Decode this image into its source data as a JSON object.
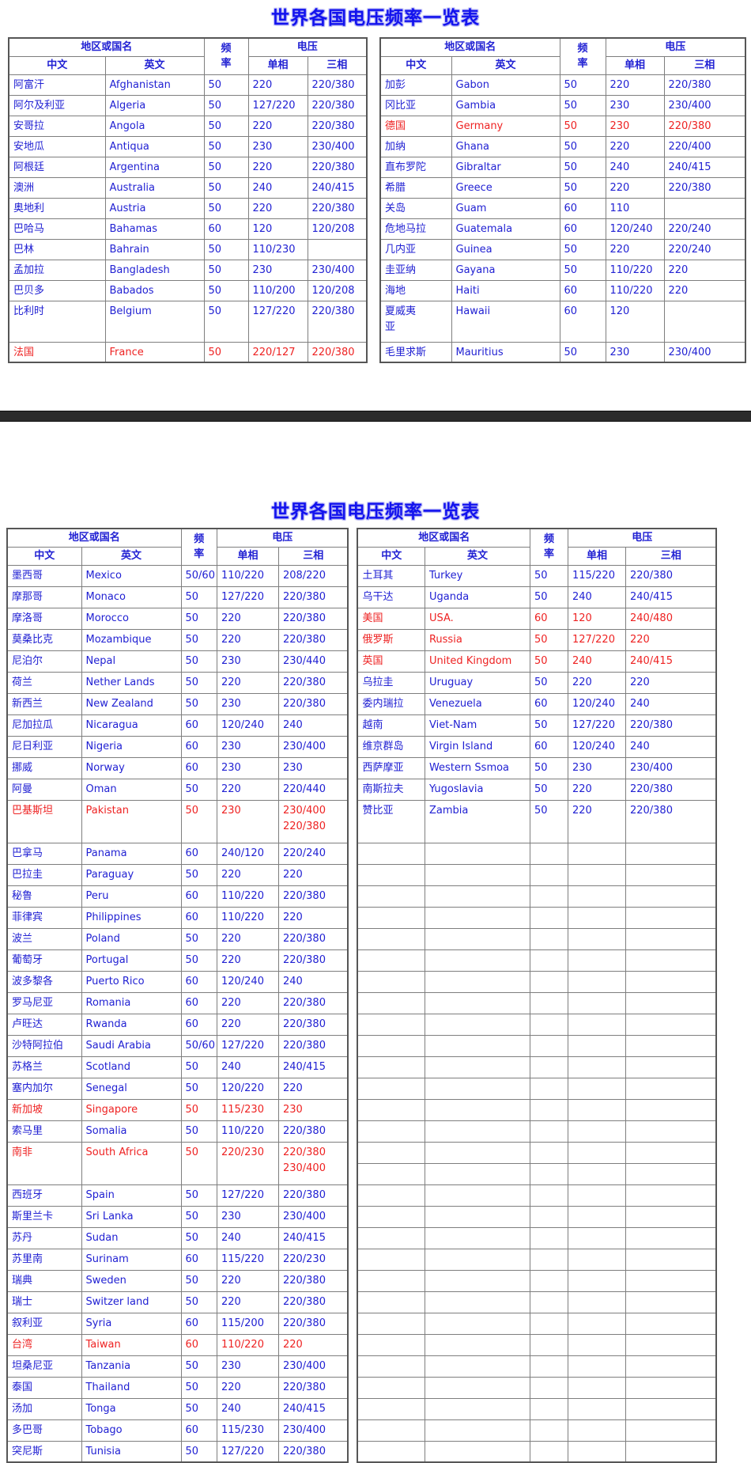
{
  "page": {
    "title": "世界各国电压频率一览表",
    "header": {
      "region": "地区或国名",
      "chinese": "中文",
      "english": "英文",
      "frequency": [
        "频",
        "率"
      ],
      "voltage": "电压",
      "single_phase": "单相",
      "three_phase": "三相"
    },
    "colors": {
      "title_blue": "#1212ee",
      "text_blue": "#2121d3",
      "highlight_red": "#ee2222",
      "table_border": "#7e7e7e",
      "divider_bar": "#2b2b2b"
    },
    "sections": [
      {
        "tables": [
          {
            "rows": [
              {
                "cn": "阿富汗",
                "en": "Afghanistan",
                "freq": "50",
                "single": "220",
                "three": "220/380"
              },
              {
                "cn": "阿尔及利亚",
                "en": "Algeria",
                "freq": "50",
                "single": "127/220",
                "three": "220/380"
              },
              {
                "cn": "安哥拉",
                "en": "Angola",
                "freq": "50",
                "single": "220",
                "three": "220/380"
              },
              {
                "cn": "安地瓜",
                "en": "Antiqua",
                "freq": "50",
                "single": "230",
                "three": "230/400"
              },
              {
                "cn": "阿根廷",
                "en": "Argentina",
                "freq": "50",
                "single": "220",
                "three": "220/380"
              },
              {
                "cn": "澳洲",
                "en": "Australia",
                "freq": "50",
                "single": "240",
                "three": "240/415"
              },
              {
                "cn": "奥地利",
                "en": "Austria",
                "freq": "50",
                "single": "220",
                "three": "220/380"
              },
              {
                "cn": "巴哈马",
                "en": "Bahamas",
                "freq": "60",
                "single": "120",
                "three": "120/208"
              },
              {
                "cn": "巴林",
                "en": "Bahrain",
                "freq": "50",
                "single": "110/230",
                "three": ""
              },
              {
                "cn": "孟加拉",
                "en": "Bangladesh",
                "freq": "50",
                "single": "230",
                "three": "230/400"
              },
              {
                "cn": "巴贝多",
                "en": "Babados",
                "freq": "50",
                "single": "110/200",
                "three": "120/208"
              },
              {
                "cn": "比利时",
                "en": "Belgium",
                "freq": "50",
                "single": "127/220",
                "three": "220/380",
                "tall": true
              },
              {
                "cn": "法国",
                "en": "France",
                "freq": "50",
                "single": "220/127",
                "three": "220/380",
                "red": true
              }
            ],
            "empty_rows": 0
          },
          {
            "rows": [
              {
                "cn": "加彭",
                "en": "Gabon",
                "freq": "50",
                "single": "220",
                "three": "220/380"
              },
              {
                "cn": "冈比亚",
                "en": "Gambia",
                "freq": "50",
                "single": "230",
                "three": "230/400"
              },
              {
                "cn": "德国",
                "en": "Germany",
                "freq": "50",
                "single": "230",
                "three": "220/380",
                "red": true
              },
              {
                "cn": "加纳",
                "en": "Ghana",
                "freq": "50",
                "single": "220",
                "three": "220/400"
              },
              {
                "cn": "直布罗陀",
                "en": "Gibraltar",
                "freq": "50",
                "single": "240",
                "three": "240/415"
              },
              {
                "cn": "希腊",
                "en": "Greece",
                "freq": "50",
                "single": "220",
                "three": "220/380"
              },
              {
                "cn": "关岛",
                "en": "Guam",
                "freq": "60",
                "single": "110",
                "three": ""
              },
              {
                "cn": "危地马拉",
                "en": "Guatemala",
                "freq": "60",
                "single": "120/240",
                "three": "220/240"
              },
              {
                "cn": "几内亚",
                "en": "Guinea",
                "freq": "50",
                "single": "220",
                "three": "220/240"
              },
              {
                "cn": "圭亚纳",
                "en": "Gayana",
                "freq": "50",
                "single": "110/220",
                "three": "220"
              },
              {
                "cn": "海地",
                "en": "Haiti",
                "freq": "60",
                "single": "110/220",
                "three": "220"
              },
              {
                "cn": [
                  "夏威夷",
                  "亚"
                ],
                "en": "Hawaii",
                "freq": "60",
                "single": "120",
                "three": "",
                "tall": true
              },
              {
                "cn": "毛里求斯",
                "en": "Mauritius",
                "freq": "50",
                "single": "230",
                "three": "230/400"
              }
            ],
            "empty_rows": 0
          }
        ]
      },
      {
        "tables": [
          {
            "rows": [
              {
                "cn": "墨西哥",
                "en": "Mexico",
                "freq": "50/60",
                "single": "110/220",
                "three": "208/220"
              },
              {
                "cn": "摩那哥",
                "en": "Monaco",
                "freq": "50",
                "single": "127/220",
                "three": "220/380"
              },
              {
                "cn": "摩洛哥",
                "en": "Morocco",
                "freq": "50",
                "single": "220",
                "three": "220/380"
              },
              {
                "cn": "莫桑比克",
                "en": "Mozambique",
                "freq": "50",
                "single": "220",
                "three": "220/380"
              },
              {
                "cn": "尼泊尔",
                "en": "Nepal",
                "freq": "50",
                "single": "230",
                "three": "230/440"
              },
              {
                "cn": "荷兰",
                "en": "Nether Lands",
                "freq": "50",
                "single": "220",
                "three": "220/380"
              },
              {
                "cn": "新西兰",
                "en": "New Zealand",
                "freq": "50",
                "single": "230",
                "three": "220/380"
              },
              {
                "cn": "尼加拉瓜",
                "en": "Nicaragua",
                "freq": "60",
                "single": "120/240",
                "three": "240"
              },
              {
                "cn": "尼日利亚",
                "en": "Nigeria",
                "freq": "60",
                "single": "230",
                "three": "230/400"
              },
              {
                "cn": "挪威",
                "en": "Norway",
                "freq": "60",
                "single": "230",
                "three": "230"
              },
              {
                "cn": "阿曼",
                "en": "Oman",
                "freq": "50",
                "single": "220",
                "three": "220/440"
              },
              {
                "cn": "巴基斯坦",
                "en": "Pakistan",
                "freq": "50",
                "single": "230",
                "three": [
                  "230/400",
                  "220/380"
                ],
                "red": true,
                "tall": true
              },
              {
                "cn": "巴拿马",
                "en": "Panama",
                "freq": "60",
                "single": "240/120",
                "three": "220/240"
              },
              {
                "cn": "巴拉圭",
                "en": "Paraguay",
                "freq": "50",
                "single": "220",
                "three": "220"
              },
              {
                "cn": "秘鲁",
                "en": "Peru",
                "freq": "60",
                "single": "110/220",
                "three": "220/380"
              },
              {
                "cn": "菲律宾",
                "en": "Philippines",
                "freq": "60",
                "single": "110/220",
                "three": "220"
              },
              {
                "cn": "波兰",
                "en": "Poland",
                "freq": "50",
                "single": "220",
                "three": "220/380"
              },
              {
                "cn": "葡萄牙",
                "en": "Portugal",
                "freq": "50",
                "single": "220",
                "three": "220/380"
              },
              {
                "cn": "波多黎各",
                "en": "Puerto Rico",
                "freq": "60",
                "single": "120/240",
                "three": "240"
              },
              {
                "cn": "罗马尼亚",
                "en": "Romania",
                "freq": "60",
                "single": "220",
                "three": "220/380"
              },
              {
                "cn": "卢旺达",
                "en": "Rwanda",
                "freq": "60",
                "single": "220",
                "three": "220/380"
              },
              {
                "cn": "沙特阿拉伯",
                "en": "Saudi Arabia",
                "freq": "50/60",
                "single": "127/220",
                "three": "220/380"
              },
              {
                "cn": "苏格兰",
                "en": "Scotland",
                "freq": "50",
                "single": "240",
                "three": "240/415"
              },
              {
                "cn": "塞内加尔",
                "en": "Senegal",
                "freq": "50",
                "single": "120/220",
                "three": "220"
              },
              {
                "cn": "新加坡",
                "en": "Singapore",
                "freq": "50",
                "single": "115/230",
                "three": "230",
                "red": true
              },
              {
                "cn": "索马里",
                "en": "Somalia",
                "freq": "50",
                "single": "110/220",
                "three": "220/380"
              },
              {
                "cn": "南非",
                "en": "South Africa",
                "freq": "50",
                "single": "220/230",
                "three": [
                  "220/380",
                  "230/400"
                ],
                "red": true,
                "tall": true
              },
              {
                "cn": "西班牙",
                "en": "Spain",
                "freq": "50",
                "single": "127/220",
                "three": "220/380"
              },
              {
                "cn": "斯里兰卡",
                "en": "Sri Lanka",
                "freq": "50",
                "single": "230",
                "three": "230/400"
              },
              {
                "cn": "苏丹",
                "en": "Sudan",
                "freq": "50",
                "single": "240",
                "three": "240/415"
              },
              {
                "cn": "苏里南",
                "en": "Surinam",
                "freq": "60",
                "single": "115/220",
                "three": "220/230"
              },
              {
                "cn": "瑞典",
                "en": "Sweden",
                "freq": "50",
                "single": "220",
                "three": "220/380"
              },
              {
                "cn": "瑞士",
                "en": "Switzer land",
                "freq": "50",
                "single": "220",
                "three": "220/380"
              },
              {
                "cn": "叙利亚",
                "en": "Syria",
                "freq": "60",
                "single": "115/200",
                "three": "220/380"
              },
              {
                "cn": "台湾",
                "en": "Taiwan",
                "freq": "60",
                "single": "110/220",
                "three": "220",
                "red": true
              },
              {
                "cn": "坦桑尼亚",
                "en": "Tanzania",
                "freq": "50",
                "single": "230",
                "three": "230/400"
              },
              {
                "cn": "泰国",
                "en": "Thailand",
                "freq": "50",
                "single": "220",
                "three": "220/380"
              },
              {
                "cn": "汤加",
                "en": "Tonga",
                "freq": "50",
                "single": "240",
                "three": "240/415"
              },
              {
                "cn": "多巴哥",
                "en": "Tobago",
                "freq": "60",
                "single": "115/230",
                "three": "230/400"
              },
              {
                "cn": "突尼斯",
                "en": "Tunisia",
                "freq": "50",
                "single": "127/220",
                "three": "220/380"
              }
            ],
            "empty_rows": 0
          },
          {
            "rows": [
              {
                "cn": "土耳其",
                "en": "Turkey",
                "freq": "50",
                "single": "115/220",
                "three": "220/380"
              },
              {
                "cn": "乌干达",
                "en": "Uganda",
                "freq": "50",
                "single": "240",
                "three": "240/415"
              },
              {
                "cn": "美国",
                "en": "USA.",
                "freq": "60",
                "single": "120",
                "three": "240/480",
                "red": true
              },
              {
                "cn": "俄罗斯",
                "en": "Russia",
                "freq": "50",
                "single": "127/220",
                "three": "220",
                "red": true
              },
              {
                "cn": "英国",
                "en": "United Kingdom",
                "freq": "50",
                "single": "240",
                "three": "240/415",
                "red": true
              },
              {
                "cn": "乌拉圭",
                "en": "Uruguay",
                "freq": "50",
                "single": "220",
                "three": "220"
              },
              {
                "cn": "委内瑞拉",
                "en": "Venezuela",
                "freq": "60",
                "single": "120/240",
                "three": "240"
              },
              {
                "cn": "越南",
                "en": "Viet-Nam",
                "freq": "50",
                "single": "127/220",
                "three": "220/380"
              },
              {
                "cn": "维京群岛",
                "en": "Virgin Island",
                "freq": "60",
                "single": "120/240",
                "three": "240"
              },
              {
                "cn": "西萨摩亚",
                "en": "Western Ssmoa",
                "freq": "50",
                "single": "230",
                "three": "230/400"
              },
              {
                "cn": "南斯拉夫",
                "en": "Yugoslavia",
                "freq": "50",
                "single": "220",
                "three": "220/380"
              },
              {
                "cn": "赞比亚",
                "en": "Zambia",
                "freq": "50",
                "single": "220",
                "three": "220/380",
                "tall": true
              }
            ],
            "empty_rows": 29
          }
        ]
      }
    ]
  }
}
